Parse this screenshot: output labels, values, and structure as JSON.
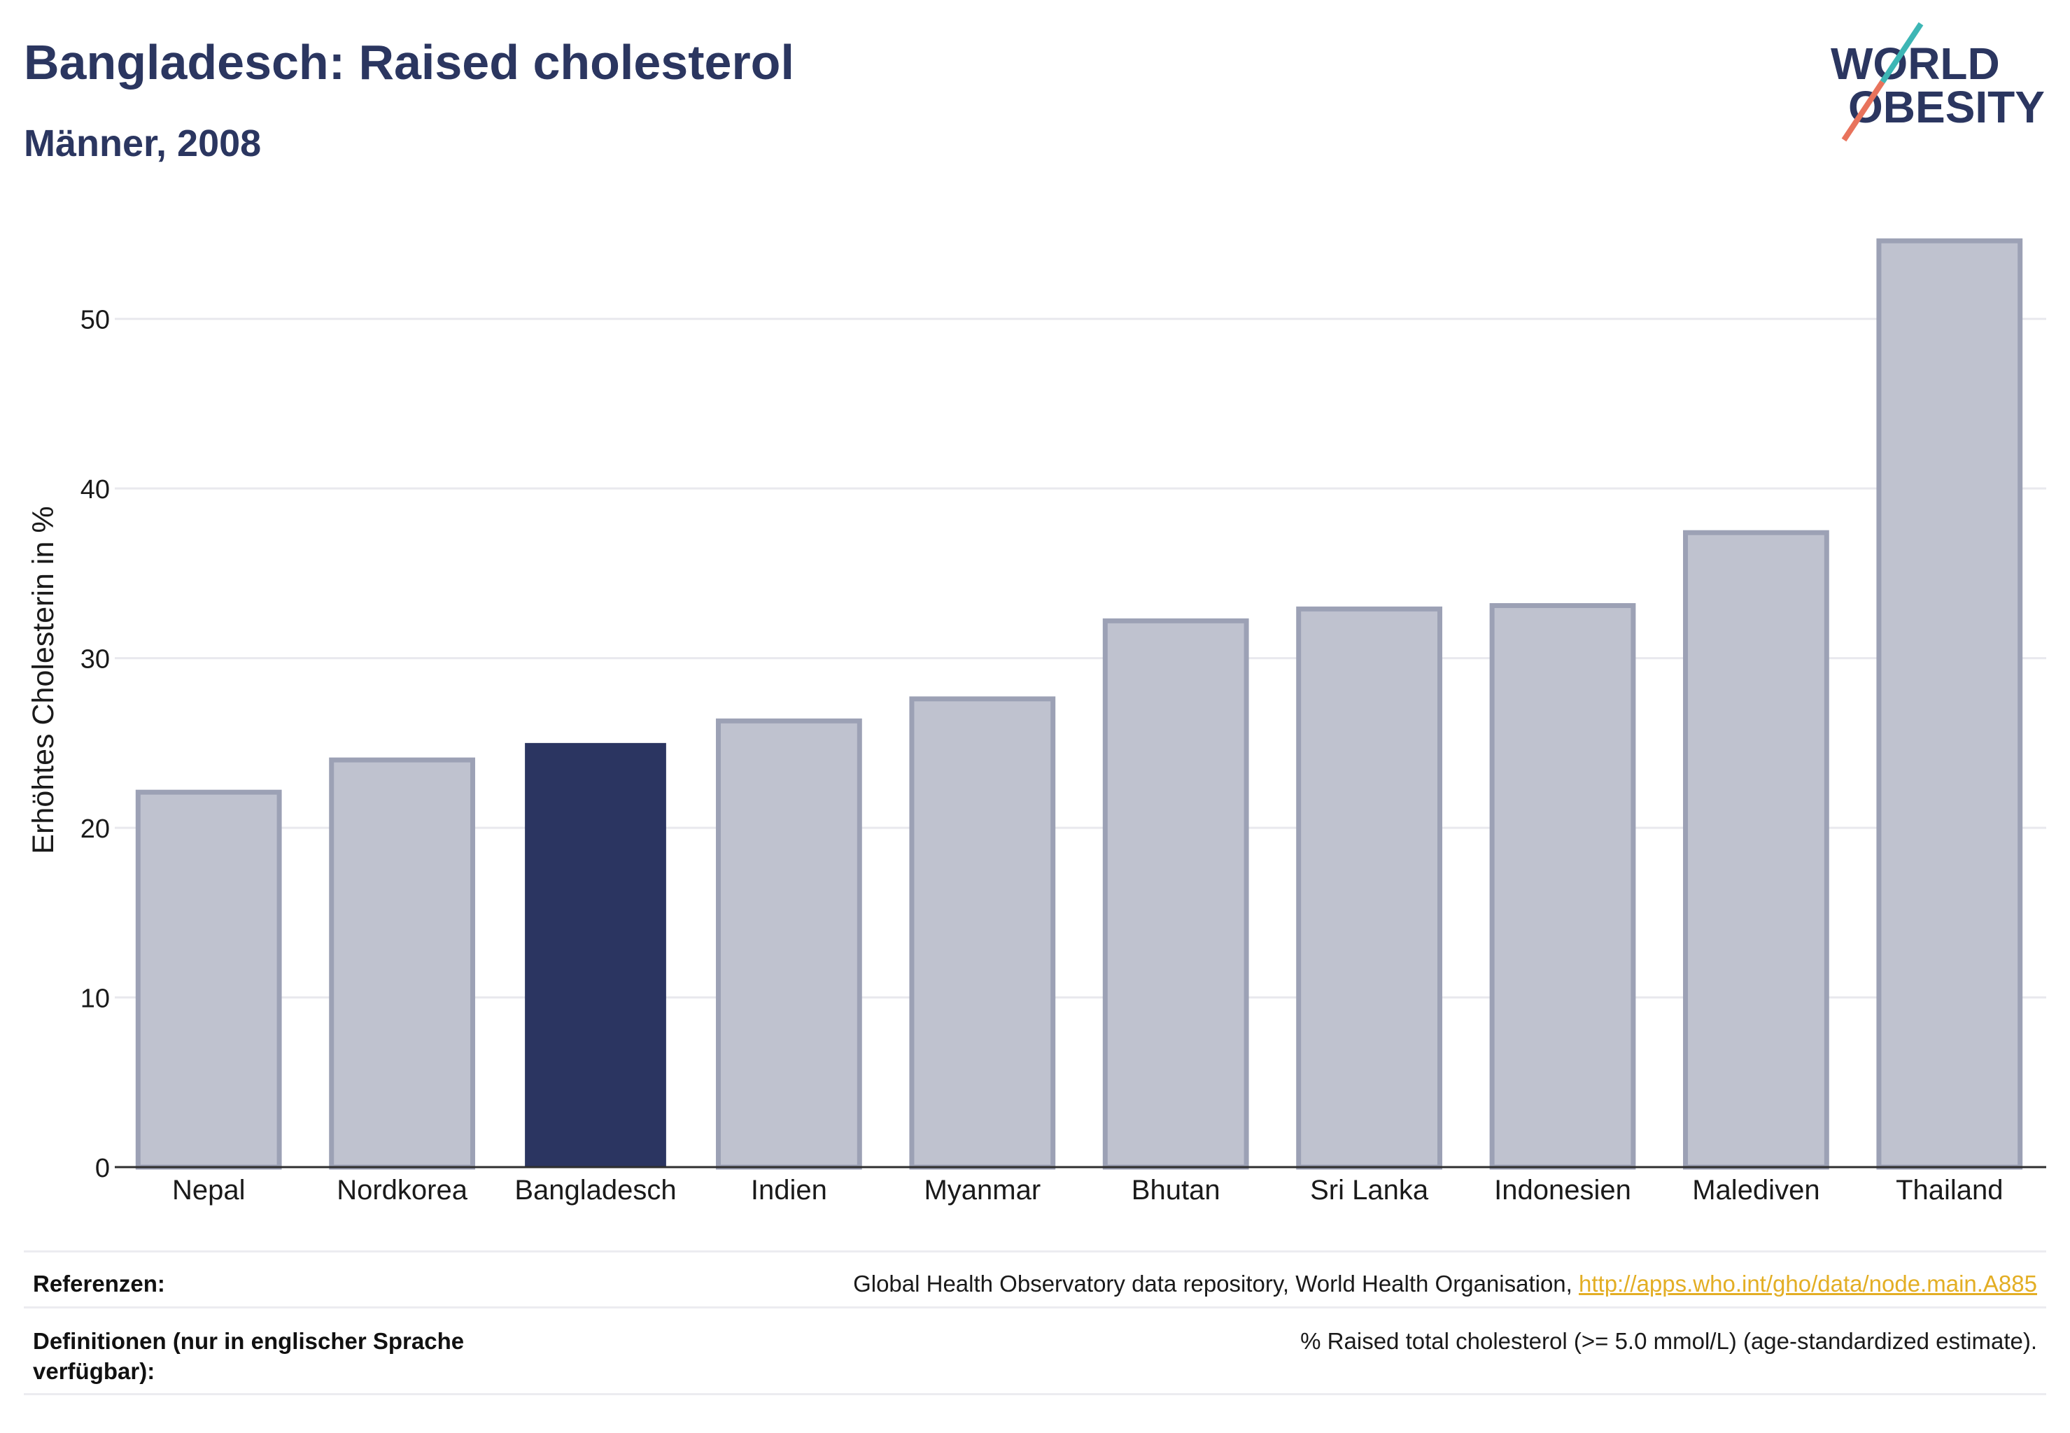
{
  "logo": {
    "line1": "WORLD",
    "line2": "OBESITY",
    "colors": {
      "text": "#2b3660",
      "slash_top": "#3db6b5",
      "slash_bottom": "#e8735c"
    }
  },
  "chart_data": {
    "type": "bar",
    "title": "Bangladesch: Raised cholesterol",
    "subtitle": "Männer, 2008",
    "ylabel": "Erhöhtes Cholesterin in %",
    "categories": [
      "Nepal",
      "Nordkorea",
      "Bangladesch",
      "Indien",
      "Myanmar",
      "Bhutan",
      "Sri Lanka",
      "Indonesien",
      "Malediven",
      "Thailand"
    ],
    "values": [
      22.1,
      24.0,
      25.0,
      26.3,
      27.6,
      32.2,
      32.9,
      33.1,
      37.4,
      54.6
    ],
    "highlight": "Bangladesch",
    "ylim": [
      0,
      57
    ],
    "yticks": [
      0,
      10,
      20,
      30,
      40,
      50
    ],
    "grid": true,
    "colors": {
      "highlight": "#2b3561",
      "bar": "#bfc2cf",
      "bar_border": "#9ca1b5",
      "grid": "#e9e9ee",
      "axis": "#2f2f2f"
    }
  },
  "footer": {
    "references": {
      "label": "Referenzen:",
      "text": "Global Health Observatory data repository, World Health Organisation, ",
      "link": "http://apps.who.int/gho/data/node.main.A885"
    },
    "definitions": {
      "label": "Definitionen (nur in englischer Sprache verfügbar):",
      "text": "% Raised total cholesterol (>= 5.0 mmol/L) (age-standardized estimate)."
    }
  },
  "colors": {
    "title": "#2b3660",
    "link": "#e3ae24",
    "rule": "#ececf0"
  }
}
